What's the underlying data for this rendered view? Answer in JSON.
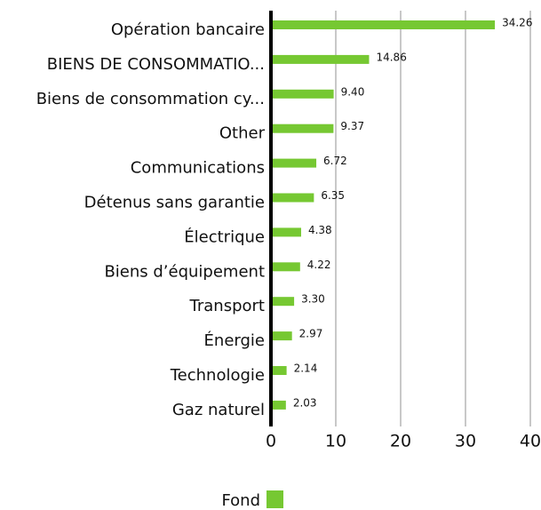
{
  "chart_data": {
    "type": "bar",
    "orientation": "horizontal",
    "categories": [
      "Opération bancaire",
      "BIENS DE CONSOMMATIO...",
      "Biens de consommation cy...",
      "Other",
      "Communications",
      "Détenus sans garantie",
      "Électrique",
      "Biens d’équipement",
      "Transport",
      "Énergie",
      "Technologie",
      "Gaz naturel"
    ],
    "series": [
      {
        "name": "Fond",
        "color": "#76c832",
        "values": [
          34.26,
          14.86,
          9.4,
          9.37,
          6.72,
          6.35,
          4.38,
          4.22,
          3.3,
          2.97,
          2.14,
          2.03
        ],
        "value_labels": [
          "34.26",
          "14.86",
          "9.40",
          "9.37",
          "6.72",
          "6.35",
          "4.38",
          "4.22",
          "3.30",
          "2.97",
          "2.14",
          "2.03"
        ]
      }
    ],
    "xlim": [
      0,
      40
    ],
    "xticks": [
      0,
      10,
      20,
      30,
      40
    ],
    "grid": true,
    "legend": "bottom"
  }
}
